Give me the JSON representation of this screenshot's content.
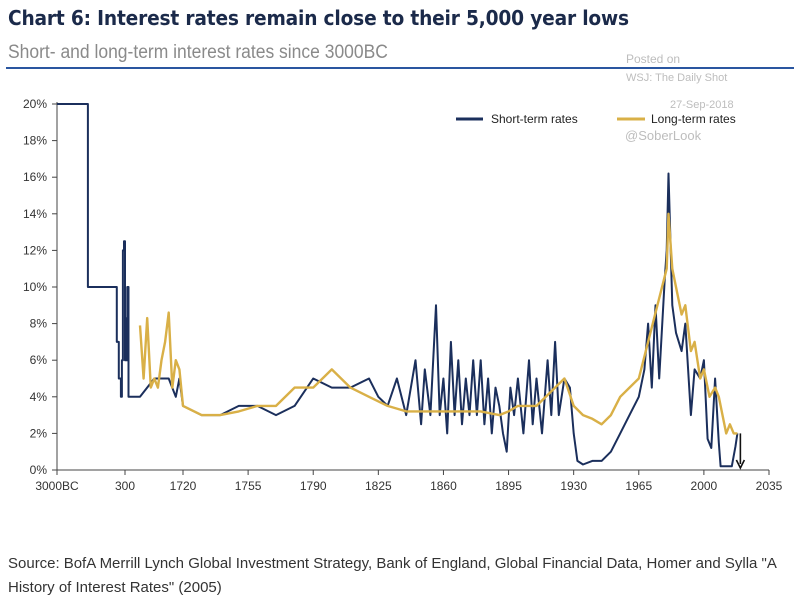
{
  "header": {
    "title": "Chart 6: Interest rates remain close to their 5,000 year lows",
    "subtitle": "Short- and long-term interest rates since 3000BC"
  },
  "watermark": {
    "line1": "Posted on",
    "line2": "WSJ: The Daily Shot",
    "line3": "27-Sep-2018",
    "handle": "@SoberLook"
  },
  "source": {
    "prefix": "Source:",
    "text": "BofA Merrill Lynch Global Investment Strategy, Bank of England, Global Financial Data, Homer and Sylla \"A History of Interest Rates\" (2005)"
  },
  "colors": {
    "short": "#1b2f5c",
    "long": "#d9b047",
    "axis": "#444444",
    "text": "#333333"
  },
  "chart_data": {
    "type": "line",
    "title": "Chart 6: Interest rates remain close to their 5,000 year lows",
    "subtitle": "Short- and long-term interest rates since 3000BC",
    "x_tick_labels": [
      "3000BC",
      "300",
      "1720",
      "1755",
      "1790",
      "1825",
      "1860",
      "1895",
      "1930",
      "1965",
      "2000",
      "2035"
    ],
    "y_tick_labels": [
      "0%",
      "2%",
      "4%",
      "6%",
      "8%",
      "10%",
      "12%",
      "14%",
      "16%",
      "18%",
      "20%"
    ],
    "ylim": [
      0,
      20
    ],
    "x_axis_note": "non-linear axis: 3000BC, 300, then 1720–2035 at 35-year steps",
    "legend_position": "top-right",
    "series": [
      {
        "name": "Short-term rates",
        "color": "#1b2f5c",
        "points": [
          [
            "3000BC",
            20
          ],
          [
            "-2500",
            20
          ],
          [
            "-2000",
            20
          ],
          [
            "-1500",
            10
          ],
          [
            "-1000",
            10
          ],
          [
            "-500",
            10
          ],
          [
            "-200",
            10
          ],
          [
            "-100",
            7
          ],
          [
            "0",
            5
          ],
          [
            "100",
            4
          ],
          [
            "150",
            6
          ],
          [
            "200",
            12
          ],
          [
            "250",
            12.5
          ],
          [
            "300",
            6
          ],
          [
            "320",
            8.3
          ],
          [
            "340",
            8.3
          ],
          [
            "360",
            6
          ],
          [
            "400",
            6
          ],
          [
            "500",
            10
          ],
          [
            "600",
            4
          ],
          [
            "1600",
            4
          ],
          [
            "1640",
            5
          ],
          [
            "1660",
            5
          ],
          [
            "1680",
            5
          ],
          [
            "1700",
            4
          ],
          [
            "1710",
            5
          ],
          [
            "1720",
            3.5
          ],
          [
            "1730",
            3
          ],
          [
            "1740",
            3
          ],
          [
            "1750",
            3.5
          ],
          [
            "1760",
            3.5
          ],
          [
            "1770",
            3
          ],
          [
            "1780",
            3.5
          ],
          [
            "1790",
            5
          ],
          [
            "1800",
            4.5
          ],
          [
            "1810",
            4.5
          ],
          [
            "1820",
            5
          ],
          [
            "1825",
            4
          ],
          [
            "1830",
            3.5
          ],
          [
            "1835",
            5
          ],
          [
            "1840",
            3
          ],
          [
            "1845",
            6
          ],
          [
            "1848",
            2.5
          ],
          [
            "1850",
            5.5
          ],
          [
            "1853",
            3
          ],
          [
            "1856",
            9
          ],
          [
            "1858",
            3
          ],
          [
            "1860",
            5
          ],
          [
            "1862",
            2
          ],
          [
            "1864",
            7
          ],
          [
            "1866",
            3
          ],
          [
            "1868",
            6
          ],
          [
            "1870",
            2.5
          ],
          [
            "1872",
            5
          ],
          [
            "1874",
            3
          ],
          [
            "1876",
            6
          ],
          [
            "1878",
            3
          ],
          [
            "1880",
            6
          ],
          [
            "1882",
            2.5
          ],
          [
            "1884",
            5
          ],
          [
            "1886",
            2
          ],
          [
            "1888",
            4.5
          ],
          [
            "1890",
            3.5
          ],
          [
            "1892",
            2
          ],
          [
            "1894",
            1
          ],
          [
            "1896",
            4.5
          ],
          [
            "1898",
            3
          ],
          [
            "1900",
            5
          ],
          [
            "1903",
            2
          ],
          [
            "1906",
            6
          ],
          [
            "1908",
            2.5
          ],
          [
            "1910",
            5
          ],
          [
            "1913",
            2
          ],
          [
            "1916",
            6
          ],
          [
            "1918",
            3
          ],
          [
            "1920",
            7
          ],
          [
            "1922",
            3
          ],
          [
            "1925",
            5
          ],
          [
            "1928",
            4.5
          ],
          [
            "1930",
            2
          ],
          [
            "1932",
            0.5
          ],
          [
            "1935",
            0.3
          ],
          [
            "1940",
            0.5
          ],
          [
            "1945",
            0.5
          ],
          [
            "1950",
            1
          ],
          [
            "1955",
            2
          ],
          [
            "1960",
            3
          ],
          [
            "1965",
            4
          ],
          [
            "1968",
            5.5
          ],
          [
            "1970",
            8
          ],
          [
            "1972",
            4.5
          ],
          [
            "1974",
            9
          ],
          [
            "1976",
            5
          ],
          [
            "1979",
            10.5
          ],
          [
            "1980",
            12
          ],
          [
            "1981",
            16.2
          ],
          [
            "1983",
            9
          ],
          [
            "1985",
            7.5
          ],
          [
            "1988",
            6.5
          ],
          [
            "1990",
            8
          ],
          [
            "1993",
            3
          ],
          [
            "1995",
            5.5
          ],
          [
            "1998",
            5
          ],
          [
            "2000",
            6
          ],
          [
            "2002",
            1.7
          ],
          [
            "2004",
            1.2
          ],
          [
            "2006",
            5
          ],
          [
            "2008",
            1.5
          ],
          [
            "2009",
            0.2
          ],
          [
            "2015",
            0.2
          ],
          [
            "2017",
            1.3
          ],
          [
            "2018",
            2
          ]
        ]
      },
      {
        "name": "Long-term rates",
        "color": "#d9b047",
        "points": [
          [
            "1600",
            7.9
          ],
          [
            "1610",
            5
          ],
          [
            "1620",
            8.3
          ],
          [
            "1630",
            4.5
          ],
          [
            "1640",
            5
          ],
          [
            "1650",
            4.5
          ],
          [
            "1660",
            6
          ],
          [
            "1670",
            7
          ],
          [
            "1680",
            8.6
          ],
          [
            "1690",
            4.5
          ],
          [
            "1700",
            6
          ],
          [
            "1710",
            5.5
          ],
          [
            "1715",
            4.5
          ],
          [
            "1720",
            3.5
          ],
          [
            "1730",
            3
          ],
          [
            "1740",
            3
          ],
          [
            "1750",
            3.2
          ],
          [
            "1760",
            3.5
          ],
          [
            "1770",
            3.5
          ],
          [
            "1780",
            4.5
          ],
          [
            "1790",
            4.5
          ],
          [
            "1800",
            5.5
          ],
          [
            "1810",
            4.5
          ],
          [
            "1820",
            4
          ],
          [
            "1830",
            3.5
          ],
          [
            "1840",
            3.2
          ],
          [
            "1850",
            3.2
          ],
          [
            "1860",
            3.2
          ],
          [
            "1870",
            3.2
          ],
          [
            "1880",
            3.2
          ],
          [
            "1890",
            3
          ],
          [
            "1895",
            3.2
          ],
          [
            "1900",
            3.5
          ],
          [
            "1910",
            3.5
          ],
          [
            "1920",
            4.5
          ],
          [
            "1925",
            5
          ],
          [
            "1930",
            3.5
          ],
          [
            "1935",
            3
          ],
          [
            "1940",
            2.8
          ],
          [
            "1945",
            2.5
          ],
          [
            "1950",
            3
          ],
          [
            "1955",
            4
          ],
          [
            "1960",
            4.5
          ],
          [
            "1965",
            5
          ],
          [
            "1970",
            7
          ],
          [
            "1975",
            9
          ],
          [
            "1980",
            11
          ],
          [
            "1981",
            14
          ],
          [
            "1983",
            11
          ],
          [
            "1985",
            10
          ],
          [
            "1988",
            8.5
          ],
          [
            "1990",
            9
          ],
          [
            "1993",
            6.5
          ],
          [
            "1995",
            7
          ],
          [
            "1998",
            5
          ],
          [
            "2000",
            5.5
          ],
          [
            "2003",
            4
          ],
          [
            "2006",
            4.5
          ],
          [
            "2008",
            4
          ],
          [
            "2010",
            3
          ],
          [
            "2012",
            2
          ],
          [
            "2014",
            2.5
          ],
          [
            "2016",
            2
          ],
          [
            "2018",
            2
          ]
        ]
      }
    ]
  }
}
